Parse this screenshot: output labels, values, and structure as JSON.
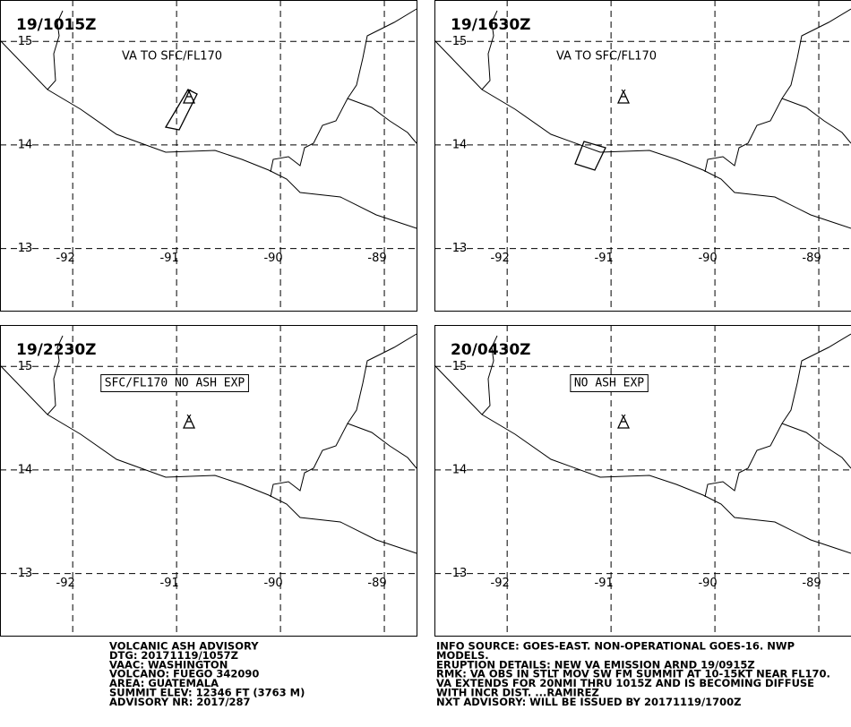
{
  "panels": [
    {
      "time": "19/1015Z",
      "label": "VA TO SFC/FL170"
    },
    {
      "time": "19/1630Z",
      "label": "VA TO SFC/FL170"
    },
    {
      "time": "19/2230Z",
      "label": "SFC/FL170 NO ASH EXP"
    },
    {
      "time": "20/0430Z",
      "label": "NO ASH EXP"
    }
  ],
  "map": {
    "xlim": [
      -92.7,
      -88.69
    ],
    "ylim": [
      12.4,
      15.4
    ],
    "lat_ticks": [
      15,
      14,
      13
    ],
    "lon_ticks": [
      -92,
      -91,
      -90,
      -89
    ]
  },
  "advisory_left": [
    "VOLCANIC ASH ADVISORY",
    "DTG: 20171119/1057Z",
    "VAAC: WASHINGTON",
    "VOLCANO: FUEGO 342090",
    "AREA: GUATEMALA",
    "SUMMIT ELEV: 12346 FT (3763 M)",
    "ADVISORY NR: 2017/287"
  ],
  "advisory_right": [
    "INFO SOURCE: GOES-EAST. NON-OPERATIONAL GOES-16. NWP",
    "MODELS.",
    "ERUPTION DETAILS: NEW VA EMISSION ARND 19/0915Z",
    "RMK: VA OBS IN STLT MOV SW FM SUMMIT AT 10-15KT NEAR FL170.",
    "VA EXTENDS FOR 20NMI THRU 1015Z AND IS BECOMING DIFFUSE",
    "WITH INCR DIST. ...RAMIREZ",
    "NXT ADVISORY: WILL BE ISSUED BY 20171119/1700Z"
  ]
}
